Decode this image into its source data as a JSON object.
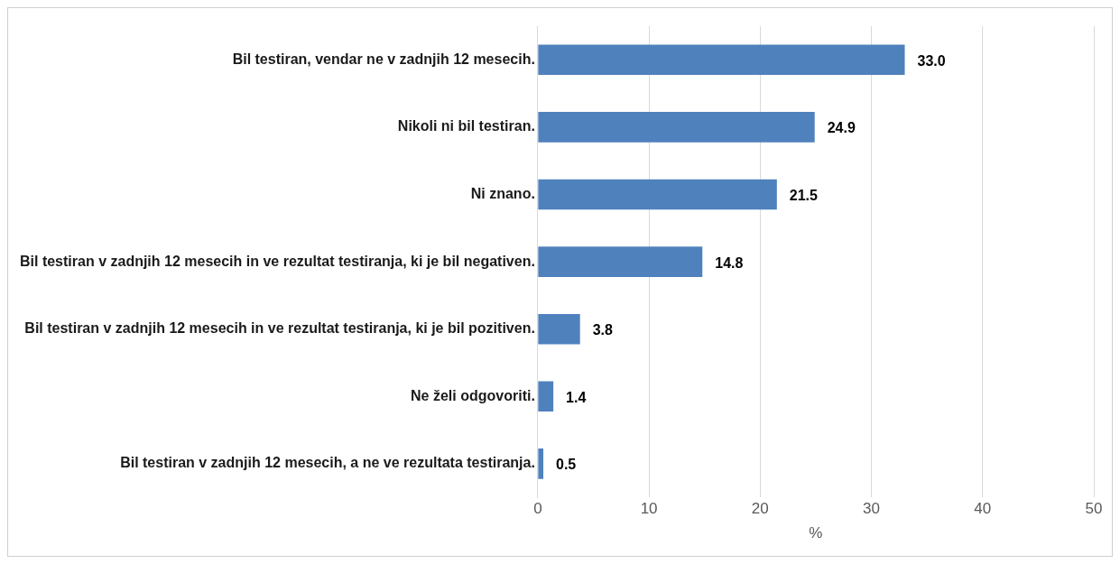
{
  "chart_data": {
    "type": "bar",
    "orientation": "horizontal",
    "xlabel": "%",
    "categories": [
      "Bil testiran, vendar ne v zadnjih 12 mesecih.",
      "Nikoli ni bil testiran.",
      "Ni znano.",
      "Bil testiran v zadnjih 12 mesecih in ve rezultat testiranja, ki je bil negativen.",
      "Bil testiran v zadnjih 12 mesecih in ve rezultat testiranja, ki je bil pozitiven.",
      "Ne želi odgovoriti.",
      "Bil testiran v zadnjih 12 mesecih, a ne ve rezultata testiranja."
    ],
    "values": [
      33.0,
      24.9,
      21.5,
      14.8,
      3.8,
      1.4,
      0.5
    ],
    "value_labels": [
      "33.0",
      "24.9",
      "21.5",
      "14.8",
      "3.8",
      "1.4",
      "0.5"
    ],
    "color": "#4f81bd",
    "xlim": [
      0,
      50
    ],
    "xticks": [
      0,
      10,
      20,
      30,
      40,
      50
    ],
    "grid": "x",
    "legend": false
  }
}
